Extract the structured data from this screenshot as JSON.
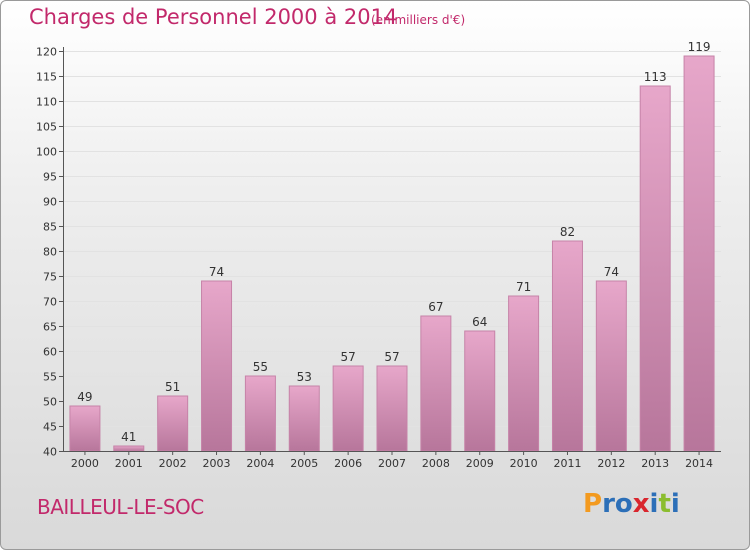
{
  "header": {
    "title": "Charges de Personnel 2000 à 2014",
    "subtitle": "(en milliers d'€)"
  },
  "footer": {
    "commune": "BAILLEUL-LE-SOC",
    "logo_letters": [
      "P",
      "r",
      "o",
      "x",
      "i",
      "t",
      "i"
    ],
    "logo_colors": [
      "#f39a1f",
      "#2c6fb8",
      "#2c6fb8",
      "#d9262e",
      "#2c6fb8",
      "#8bbd2f",
      "#2c6fb8"
    ]
  },
  "colors": {
    "bar_light": "#e7a7ca",
    "bar_dark": "#b7769b",
    "bar_edge": "#c683a8",
    "accent": "#c2296b",
    "grid": "#e2e2e2",
    "axis": "#555555"
  },
  "chart_data": {
    "type": "bar",
    "categories": [
      "2000",
      "2001",
      "2002",
      "2003",
      "2004",
      "2005",
      "2006",
      "2007",
      "2008",
      "2009",
      "2010",
      "2011",
      "2012",
      "2013",
      "2014"
    ],
    "values": [
      49,
      41,
      51,
      74,
      55,
      53,
      57,
      57,
      67,
      64,
      71,
      82,
      74,
      113,
      119
    ],
    "data_labels": [
      "49",
      "41",
      "51",
      "74",
      "55",
      "53",
      "57",
      "57",
      "67",
      "64",
      "71",
      "82",
      "74",
      "113",
      "119"
    ],
    "ylim": [
      40,
      120
    ],
    "yticks": [
      "40",
      "45",
      "50",
      "55",
      "60",
      "65",
      "70",
      "75",
      "80",
      "85",
      "90",
      "95",
      "100",
      "105",
      "110",
      "115",
      "120"
    ],
    "ytick_values": [
      40,
      45,
      50,
      55,
      60,
      65,
      70,
      75,
      80,
      85,
      90,
      95,
      100,
      105,
      110,
      115,
      120
    ],
    "grid": true,
    "xlabel": "",
    "ylabel": ""
  }
}
